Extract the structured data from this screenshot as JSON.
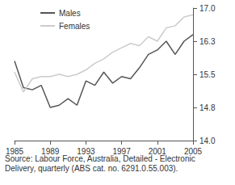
{
  "chart_data": {
    "type": "line",
    "x": [
      1985,
      1986,
      1987,
      1988,
      1989,
      1990,
      1991,
      1992,
      1993,
      1994,
      1995,
      1996,
      1997,
      1998,
      1999,
      2000,
      2001,
      2002,
      2003,
      2004,
      2005
    ],
    "series": [
      {
        "name": "Males",
        "color": "#555555",
        "values": [
          15.8,
          15.2,
          15.15,
          15.25,
          14.75,
          14.8,
          14.95,
          14.8,
          15.35,
          15.25,
          15.55,
          15.3,
          15.45,
          15.4,
          15.65,
          15.95,
          16.05,
          16.25,
          15.95,
          16.25,
          16.4
        ]
      },
      {
        "name": "Females",
        "color": "#cccccc",
        "values": [
          15.55,
          15.1,
          15.4,
          15.45,
          15.45,
          15.5,
          15.45,
          15.5,
          15.6,
          15.75,
          15.85,
          16.0,
          16.1,
          16.2,
          16.15,
          16.35,
          16.25,
          16.55,
          16.6,
          16.8,
          16.85
        ]
      }
    ],
    "xlim": [
      1985,
      2005
    ],
    "xticks": [
      1985,
      1989,
      1993,
      1997,
      2001,
      2005
    ],
    "ylim": [
      14.0,
      17.0
    ],
    "yticks": [
      {
        "value": 14.0,
        "label": "14.0"
      },
      {
        "value": 14.75,
        "label": "14.8"
      },
      15.5,
      {
        "value": 16.25,
        "label": "16.3"
      },
      {
        "value": 17.0,
        "label": "17.0"
      }
    ],
    "grid": false,
    "legend": "upper left",
    "annotations": [
      "Source: Labour Force, Australia, Detailed - Electronic Delivery, quarterly (ABS cat. no. 6291.0.55.003)."
    ]
  }
}
